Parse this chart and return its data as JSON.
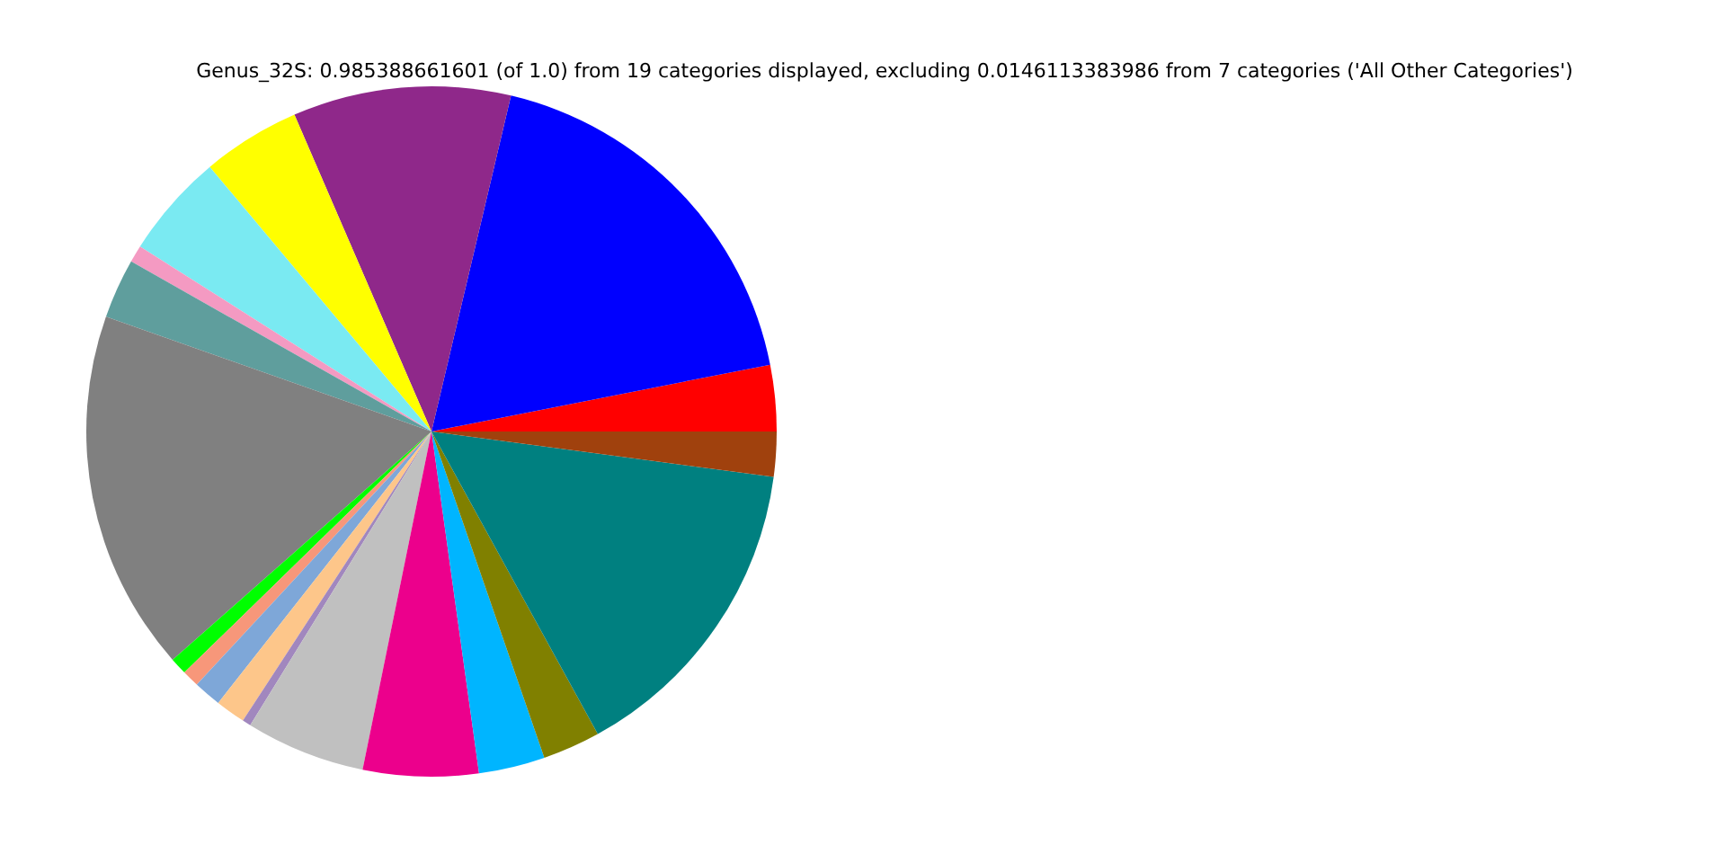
{
  "chart_data": {
    "type": "pie",
    "title": "Genus_32S: 0.985388661601 (of 1.0) from 19 categories displayed, excluding 0.0146113383986 from 7 categories ('All Other Categories')",
    "categories": [
      null,
      null,
      null,
      null,
      null,
      null,
      null,
      null,
      null,
      null,
      null,
      null,
      null,
      null,
      null,
      null,
      null,
      null,
      null
    ],
    "values": [
      3.1,
      18.2,
      10.2,
      4.6,
      4.9,
      0.8,
      2.8,
      16.9,
      0.8,
      0.8,
      1.3,
      1.4,
      0.4,
      5.6,
      5.4,
      3.1,
      2.7,
      14.9,
      2.1
    ],
    "colors": [
      "#ff0000",
      "#0000ff",
      "#8f288a",
      "#ffff00",
      "#7aeaf2",
      "#f49ac2",
      "#5f9e9d",
      "#808080",
      "#00ff00",
      "#f7977a",
      "#7ea7d8",
      "#fdc68a",
      "#a187be",
      "#c0c0c0",
      "#ec008c",
      "#00b5ff",
      "#808000",
      "#008080",
      "#a0410d"
    ],
    "legend": false
  }
}
